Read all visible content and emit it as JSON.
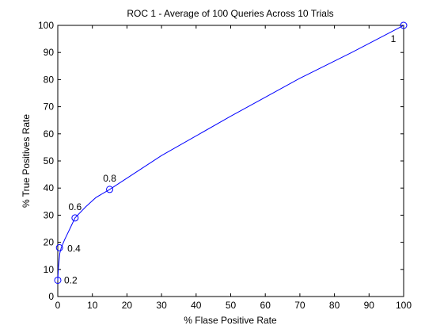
{
  "chart_data": {
    "type": "line",
    "title": "ROC 1 - Average of 100 Queries Across 10 Trials",
    "xlabel": "% Flase Positive Rate",
    "ylabel": "% True Positives Rate",
    "xlim": [
      0,
      100
    ],
    "ylim": [
      0,
      100
    ],
    "xticks": [
      0,
      10,
      20,
      30,
      40,
      50,
      60,
      70,
      80,
      90,
      100
    ],
    "yticks": [
      0,
      10,
      20,
      30,
      40,
      50,
      60,
      70,
      80,
      90,
      100
    ],
    "grid": false,
    "series": [
      {
        "x": [
          0,
          0.2,
          0.6,
          1,
          2,
          3.5,
          5,
          8,
          11,
          15,
          30,
          50,
          70,
          85,
          100
        ],
        "y": [
          6,
          11,
          16,
          18,
          21,
          25,
          29,
          33,
          36.5,
          39.5,
          52,
          66.5,
          80.5,
          90,
          100
        ],
        "color": "#0000ff"
      }
    ],
    "markers": [
      {
        "x": 0,
        "y": 6,
        "label": "0.2"
      },
      {
        "x": 0.5,
        "y": 18,
        "label": "0.4"
      },
      {
        "x": 5,
        "y": 29,
        "label": "0.6"
      },
      {
        "x": 15,
        "y": 39.5,
        "label": "0.8"
      },
      {
        "x": 100,
        "y": 100,
        "label": "1"
      }
    ]
  }
}
